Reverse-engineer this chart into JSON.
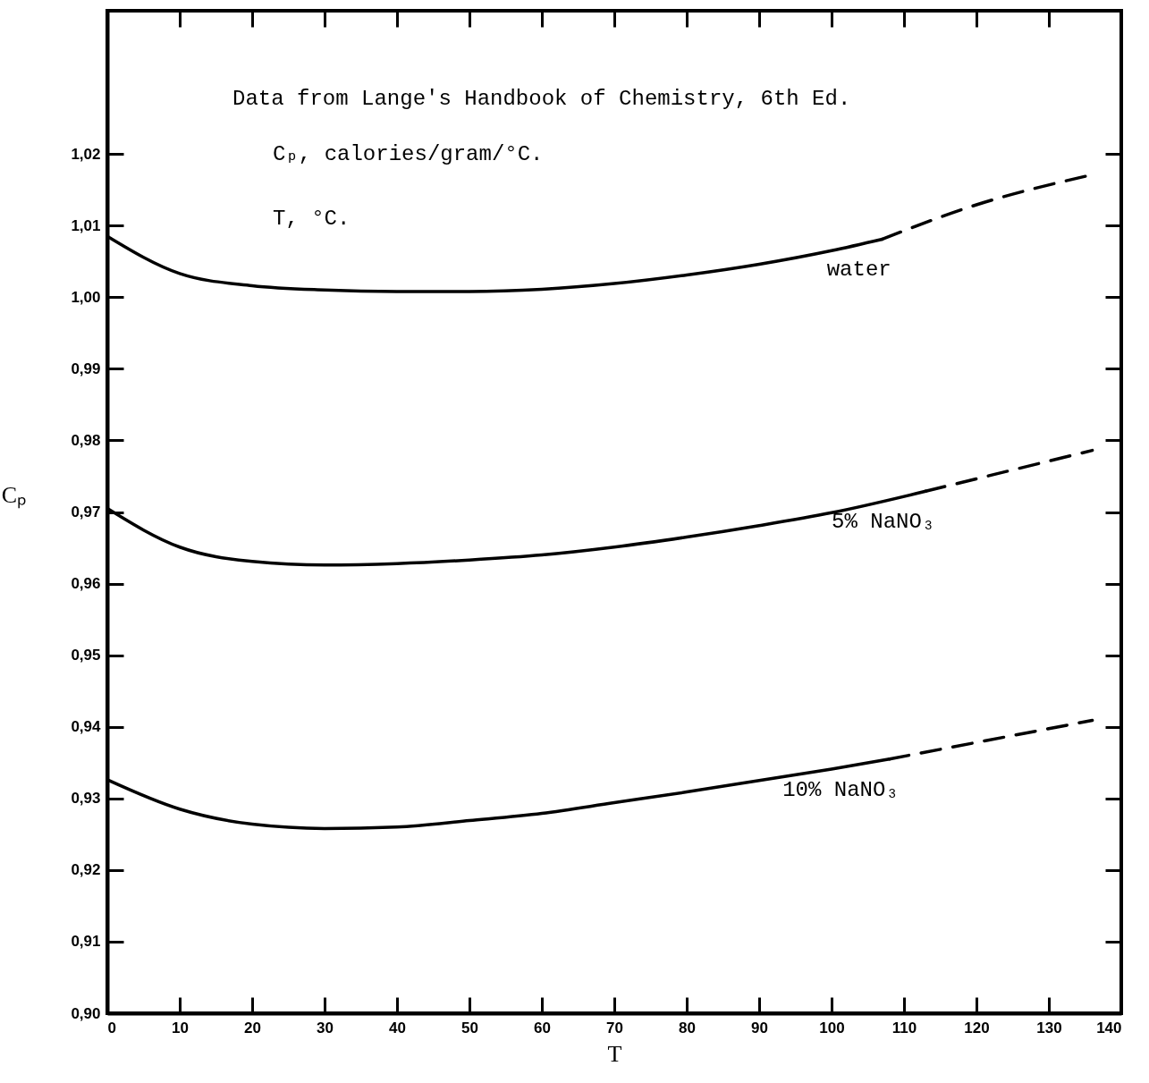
{
  "chart_data": {
    "type": "line",
    "xlabel": "T",
    "ylabel": "Cₚ",
    "annotations": [
      "Data from Lange's Handbook of Chemistry, 6th Ed.",
      "Cₚ, calories/gram/°C.",
      "T, °C."
    ],
    "xlim": [
      0,
      140
    ],
    "ylim": [
      0.9,
      1.04
    ],
    "xticks": [
      0,
      10,
      20,
      30,
      40,
      50,
      60,
      70,
      80,
      90,
      100,
      110,
      120,
      130,
      140
    ],
    "yticks": [
      {
        "value": 0.9,
        "label": "0,90"
      },
      {
        "value": 0.91,
        "label": "0,91"
      },
      {
        "value": 0.92,
        "label": "0,92"
      },
      {
        "value": 0.93,
        "label": "0,93"
      },
      {
        "value": 0.94,
        "label": "0,94"
      },
      {
        "value": 0.95,
        "label": "0,95"
      },
      {
        "value": 0.96,
        "label": "0,96"
      },
      {
        "value": 0.97,
        "label": "0,97"
      },
      {
        "value": 0.98,
        "label": "0,98"
      },
      {
        "value": 0.99,
        "label": "0,99"
      },
      {
        "value": 1.0,
        "label": "1,00"
      },
      {
        "value": 1.01,
        "label": "1,01"
      },
      {
        "value": 1.02,
        "label": "1,02"
      }
    ],
    "grid": false,
    "series": [
      {
        "name": "water",
        "color": "#000000",
        "line_style": "solid",
        "x": [
          0,
          10,
          20,
          30,
          40,
          50,
          60,
          70,
          80,
          90,
          100,
          107
        ],
        "values": [
          1.0085,
          1.0033,
          1.0016,
          1.001,
          1.0008,
          1.0008,
          1.0011,
          1.0019,
          1.0031,
          1.0046,
          1.0065,
          1.0081
        ]
      },
      {
        "color": "#000000",
        "line_style": "dashed",
        "x": [
          107,
          120,
          136
        ],
        "values": [
          1.0081,
          1.0129,
          1.0171
        ]
      },
      {
        "name": "5% NaNO₃",
        "color": "#000000",
        "line_style": "solid",
        "x": [
          0,
          10,
          20,
          30,
          40,
          50,
          60,
          70,
          80,
          90,
          100,
          113
        ],
        "values": [
          0.9705,
          0.9651,
          0.9631,
          0.9626,
          0.9628,
          0.9633,
          0.964,
          0.9651,
          0.9665,
          0.9681,
          0.9699,
          0.9729
        ]
      },
      {
        "color": "#000000",
        "line_style": "dashed",
        "x": [
          113,
          136
        ],
        "values": [
          0.9729,
          0.9786
        ]
      },
      {
        "name": "10% NaNO₃",
        "color": "#000000",
        "line_style": "solid",
        "x": [
          0,
          10,
          20,
          30,
          40,
          50,
          60,
          70,
          80,
          90,
          100,
          108
        ],
        "values": [
          0.9326,
          0.9285,
          0.9264,
          0.9258,
          0.926,
          0.9269,
          0.9279,
          0.9294,
          0.9309,
          0.9325,
          0.9341,
          0.9355
        ]
      },
      {
        "color": "#000000",
        "line_style": "dashed",
        "x": [
          108,
          136
        ],
        "values": [
          0.9355,
          0.9409
        ]
      }
    ]
  }
}
